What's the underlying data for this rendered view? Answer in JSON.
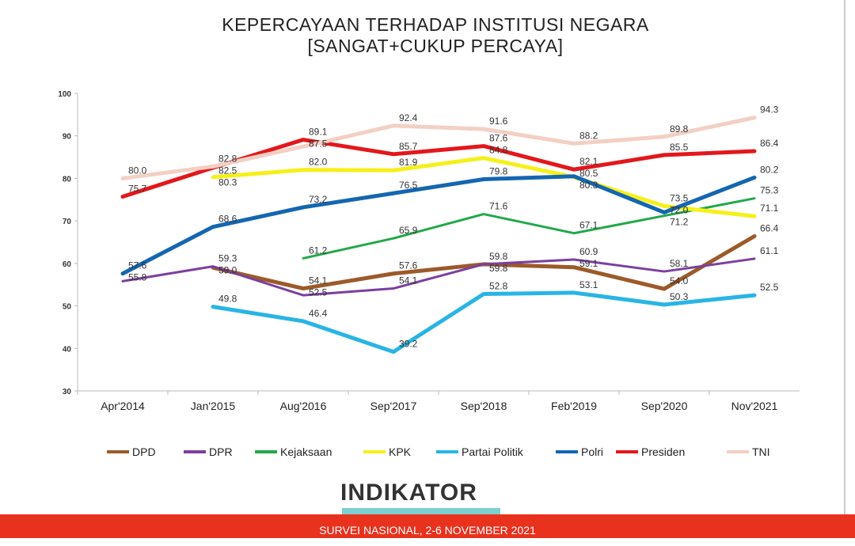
{
  "chart_data": {
    "type": "line",
    "title": "KEPERCAYAAN TERHADAP INSTITUSI NEGARA",
    "subtitle": "[SANGAT+CUKUP PERCAYA]",
    "categories": [
      "Apr'2014",
      "Jan'2015",
      "Aug'2016",
      "Sep'2017",
      "Sep'2018",
      "Feb'2019",
      "Sep'2020",
      "Nov'2021"
    ],
    "ylim": [
      30,
      100
    ],
    "yticks": [
      30,
      40,
      50,
      60,
      70,
      80,
      90,
      100
    ],
    "legend_position": "bottom",
    "series": [
      {
        "name": "DPD",
        "color": "#9c5a2a",
        "width": 5,
        "values": [
          null,
          59.0,
          54.1,
          57.6,
          59.8,
          59.1,
          54.0,
          66.4
        ]
      },
      {
        "name": "DPR",
        "color": "#7b3fa0",
        "width": 3,
        "values": [
          55.8,
          59.3,
          52.5,
          54.1,
          59.8,
          60.9,
          58.1,
          61.1
        ]
      },
      {
        "name": "Kejaksaan",
        "color": "#22a84a",
        "width": 3,
        "values": [
          null,
          null,
          61.2,
          65.9,
          71.6,
          67.1,
          71.2,
          75.3
        ]
      },
      {
        "name": "KPK",
        "color": "#f5f019",
        "width": 5,
        "values": [
          null,
          80.3,
          82.0,
          81.9,
          84.8,
          80.3,
          73.5,
          71.1
        ]
      },
      {
        "name": "Partai Politik",
        "color": "#29b4e6",
        "width": 5,
        "values": [
          null,
          49.8,
          46.4,
          39.2,
          52.8,
          53.1,
          50.3,
          52.5
        ]
      },
      {
        "name": "Polri",
        "color": "#1466b0",
        "width": 5,
        "values": [
          57.6,
          68.6,
          73.2,
          76.5,
          79.8,
          80.5,
          72.0,
          80.2
        ]
      },
      {
        "name": "Presiden",
        "color": "#e3171c",
        "width": 5,
        "values": [
          75.7,
          82.5,
          89.1,
          85.7,
          87.6,
          82.1,
          85.5,
          86.4
        ]
      },
      {
        "name": "TNI",
        "color": "#f3cfc4",
        "width": 5,
        "values": [
          80.0,
          82.8,
          87.5,
          92.4,
          91.6,
          88.2,
          89.8,
          94.3
        ]
      }
    ]
  },
  "logo": "INDIKATOR",
  "footer": "SURVEI NASIONAL, 2-6 NOVEMBER 2021"
}
